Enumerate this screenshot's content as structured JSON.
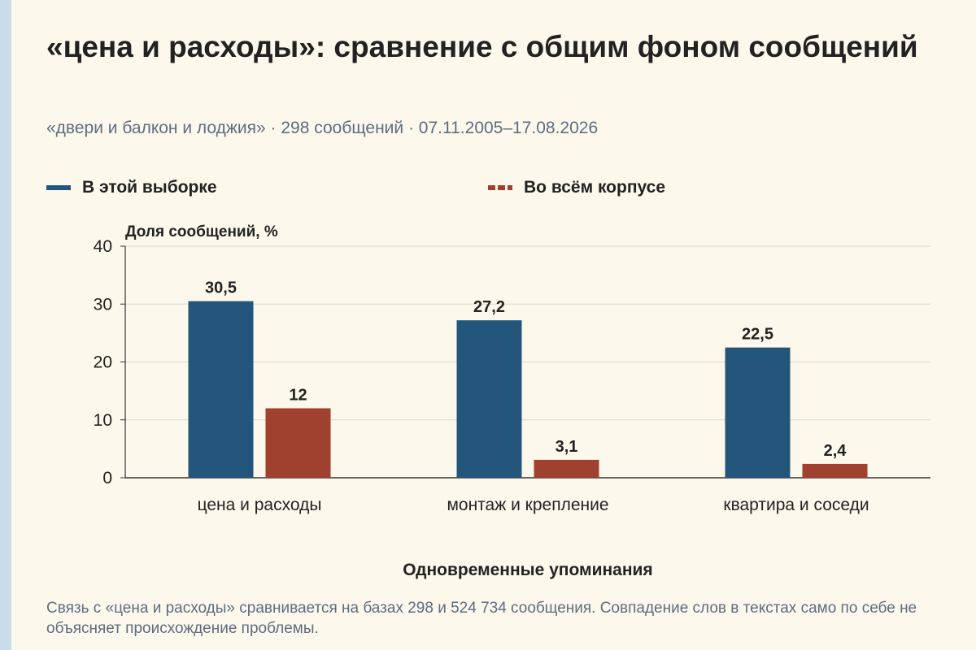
{
  "header": {
    "title": "«цена и расходы»: сравнение с общим фоном сообщений",
    "subtitle": "«двери и балкон и лоджия» · 298 сообщений · 07.11.2005–17.08.2026"
  },
  "legend": {
    "items": [
      {
        "label": "В этой выборке",
        "style": "solid",
        "color": "#24567c"
      },
      {
        "label": "Во всём корпусе",
        "style": "dashed",
        "color": "#a0412f"
      }
    ]
  },
  "chart_data": {
    "type": "bar",
    "categories": [
      "цена и расходы",
      "монтаж и крепление",
      "квартира и соседи"
    ],
    "series": [
      {
        "name": "В этой выборке",
        "values": [
          30.5,
          27.2,
          22.5
        ],
        "labels": [
          "30,5",
          "27,2",
          "22,5"
        ],
        "color": "#24567c"
      },
      {
        "name": "Во всём корпусе",
        "values": [
          12,
          3.1,
          2.4
        ],
        "labels": [
          "12",
          "3,1",
          "2,4"
        ],
        "color": "#a0412f"
      }
    ],
    "ylabel": "Доля сообщений, %",
    "xlabel": "Одновременные упоминания",
    "ylim": [
      0,
      40
    ],
    "yticks": [
      0,
      10,
      20,
      30,
      40
    ],
    "grid": true,
    "legend_position": "top"
  },
  "footer": {
    "note": "Связь с «цена и расходы» сравнивается на базах 298 и 524 734 сообщения. Совпадение слов в текстах само по себе не объясняет происхождение проблемы."
  }
}
